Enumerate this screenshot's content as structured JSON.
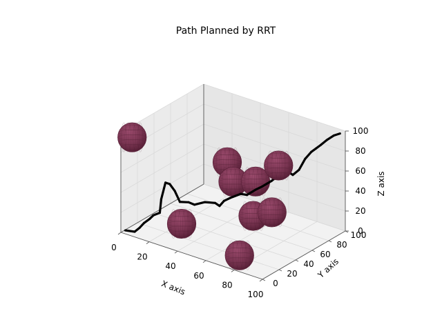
{
  "chart_data": {
    "type": "3d-line-with-spheres",
    "title": "Path Planned by RRT",
    "xlabel": "X axis",
    "ylabel": "Y axis",
    "zlabel": "Z axis",
    "xlim": [
      0,
      100
    ],
    "ylim": [
      0,
      100
    ],
    "zlim": [
      0,
      100
    ],
    "xticks": [
      "0",
      "20",
      "40",
      "60",
      "80",
      "100"
    ],
    "yticks": [
      "0",
      "20",
      "40",
      "60",
      "80",
      "100"
    ],
    "zticks": [
      "0",
      "20",
      "40",
      "60",
      "80",
      "100"
    ],
    "grid": true,
    "colors": {
      "sphere": "#7a3552",
      "sphere_edge": "#5a2139",
      "path": "#000000",
      "pane": "#f2f2f2",
      "grid": "#d9d9d9"
    },
    "obstacles": [
      {
        "x": 5,
        "y": 5,
        "z": 95,
        "r": 8
      },
      {
        "x": 50,
        "y": 50,
        "z": 50,
        "r": 8
      },
      {
        "x": 70,
        "y": 40,
        "z": 30,
        "r": 8
      },
      {
        "x": 60,
        "y": 60,
        "z": 50,
        "r": 8
      },
      {
        "x": 40,
        "y": 60,
        "z": 60,
        "r": 8
      },
      {
        "x": 85,
        "y": 45,
        "z": 85,
        "r": 8
      },
      {
        "x": 75,
        "y": 15,
        "z": 5,
        "r": 8
      },
      {
        "x": 40,
        "y": 5,
        "z": 25,
        "r": 8
      },
      {
        "x": 95,
        "y": 20,
        "z": 55,
        "r": 8
      }
    ],
    "path": [
      {
        "x": 2,
        "y": 2,
        "z": 2
      },
      {
        "x": 8,
        "y": 3,
        "z": 3
      },
      {
        "x": 11,
        "y": 4,
        "z": 8
      },
      {
        "x": 14,
        "y": 4,
        "z": 14
      },
      {
        "x": 18,
        "y": 4,
        "z": 20
      },
      {
        "x": 20,
        "y": 5,
        "z": 24
      },
      {
        "x": 24,
        "y": 6,
        "z": 28
      },
      {
        "x": 25,
        "y": 6,
        "z": 42
      },
      {
        "x": 28,
        "y": 6,
        "z": 60
      },
      {
        "x": 31,
        "y": 6,
        "z": 60
      },
      {
        "x": 34,
        "y": 7,
        "z": 54
      },
      {
        "x": 37,
        "y": 8,
        "z": 44
      },
      {
        "x": 42,
        "y": 10,
        "z": 45
      },
      {
        "x": 45,
        "y": 12,
        "z": 43
      },
      {
        "x": 50,
        "y": 16,
        "z": 46
      },
      {
        "x": 56,
        "y": 18,
        "z": 47
      },
      {
        "x": 58,
        "y": 20,
        "z": 44
      },
      {
        "x": 60,
        "y": 22,
        "z": 49
      },
      {
        "x": 62,
        "y": 26,
        "z": 51
      },
      {
        "x": 66,
        "y": 32,
        "z": 54
      },
      {
        "x": 68,
        "y": 36,
        "z": 52
      },
      {
        "x": 71,
        "y": 42,
        "z": 56
      },
      {
        "x": 73,
        "y": 46,
        "z": 58
      },
      {
        "x": 76,
        "y": 52,
        "z": 62
      },
      {
        "x": 78,
        "y": 56,
        "z": 66
      },
      {
        "x": 80,
        "y": 60,
        "z": 68
      },
      {
        "x": 82,
        "y": 63,
        "z": 68
      },
      {
        "x": 84,
        "y": 64,
        "z": 66
      },
      {
        "x": 86,
        "y": 68,
        "z": 70
      },
      {
        "x": 88,
        "y": 72,
        "z": 80
      },
      {
        "x": 90,
        "y": 76,
        "z": 86
      },
      {
        "x": 91,
        "y": 80,
        "z": 88
      },
      {
        "x": 92,
        "y": 84,
        "z": 90
      },
      {
        "x": 94,
        "y": 88,
        "z": 94
      },
      {
        "x": 96,
        "y": 93,
        "z": 97
      },
      {
        "x": 98,
        "y": 97,
        "z": 98
      }
    ]
  }
}
